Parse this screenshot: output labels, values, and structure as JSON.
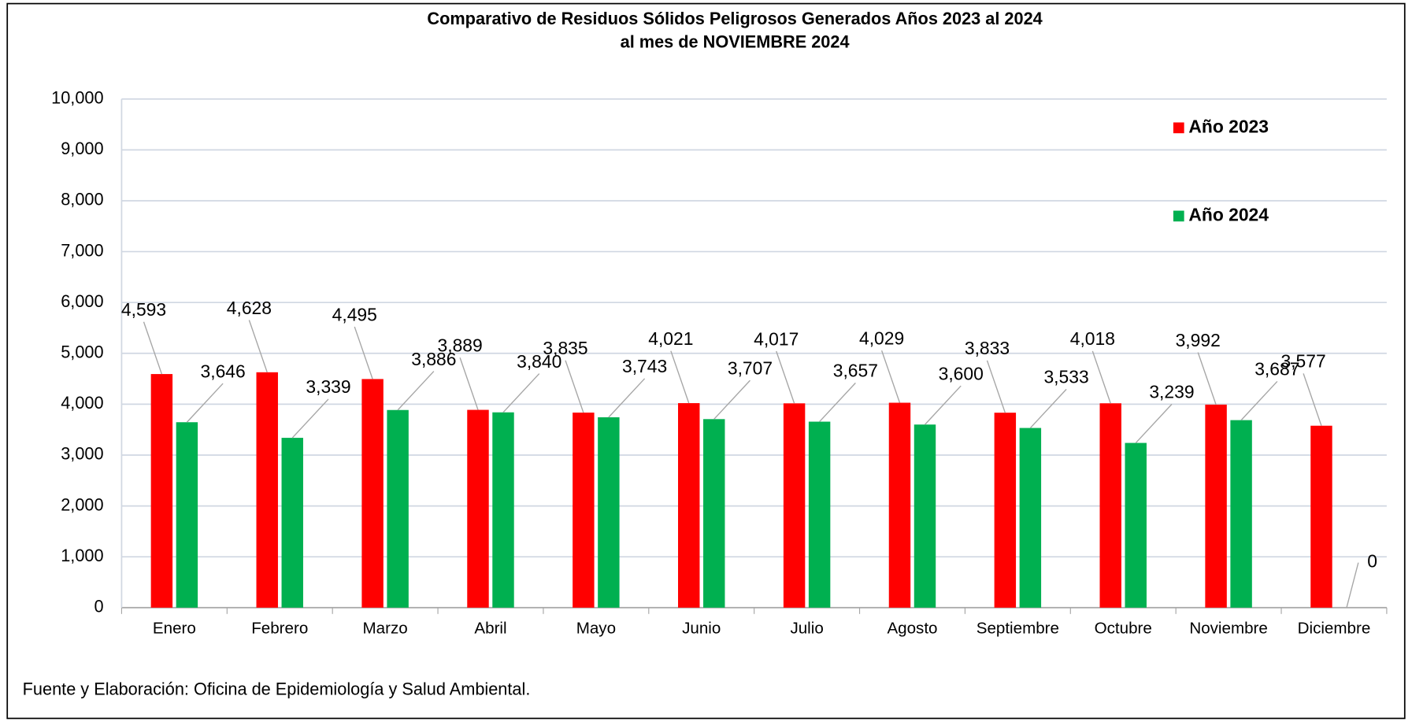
{
  "chart_data": {
    "type": "bar",
    "title": "Comparativo de Residuos Sólidos Peligrosos Generados Años 2023 al 2024",
    "subtitle": "al mes de NOVIEMBRE 2024",
    "source": "Fuente y Elaboración: Oficina de Epidemiología y Salud Ambiental.",
    "categories": [
      "Enero",
      "Febrero",
      "Marzo",
      "Abril",
      "Mayo",
      "Junio",
      "Julio",
      "Agosto",
      "Septiembre",
      "Octubre",
      "Noviembre",
      "Diciembre"
    ],
    "series": [
      {
        "name": "Año 2023",
        "color": "#ff0000",
        "values": [
          4593,
          4628,
          4495,
          3889,
          3835,
          4021,
          4017,
          4029,
          3833,
          4018,
          3992,
          3577
        ],
        "value_labels": [
          "4,593",
          "4,628",
          "4,495",
          "3,889",
          "3,835",
          "4,021",
          "4,017",
          "4,029",
          "3,833",
          "4,018",
          "3,992",
          "3,577"
        ]
      },
      {
        "name": "Año 2024",
        "color": "#00b050",
        "values": [
          3646,
          3339,
          3886,
          3840,
          3743,
          3707,
          3657,
          3600,
          3533,
          3239,
          3687,
          0
        ],
        "value_labels": [
          "3,646",
          "3,339",
          "3,886",
          "3,840",
          "3,743",
          "3,707",
          "3,657",
          "3,600",
          "3,533",
          "3,239",
          "3,687",
          "0"
        ]
      }
    ],
    "ylim": [
      0,
      10000
    ],
    "yticks": [
      0,
      {
        "value": 1000,
        "label": "1,000"
      },
      {
        "value": 2000,
        "label": "2,000"
      },
      {
        "value": 3000,
        "label": "3,000"
      },
      {
        "value": 4000,
        "label": "4,000"
      },
      {
        "value": 5000,
        "label": "5,000"
      },
      {
        "value": 6000,
        "label": "6,000"
      },
      {
        "value": 7000,
        "label": "7,000"
      },
      {
        "value": 8000,
        "label": "8,000"
      },
      {
        "value": 9000,
        "label": "9,000"
      },
      {
        "value": 10000,
        "label": "10,000"
      }
    ],
    "grid": true,
    "legend": "upper right"
  }
}
